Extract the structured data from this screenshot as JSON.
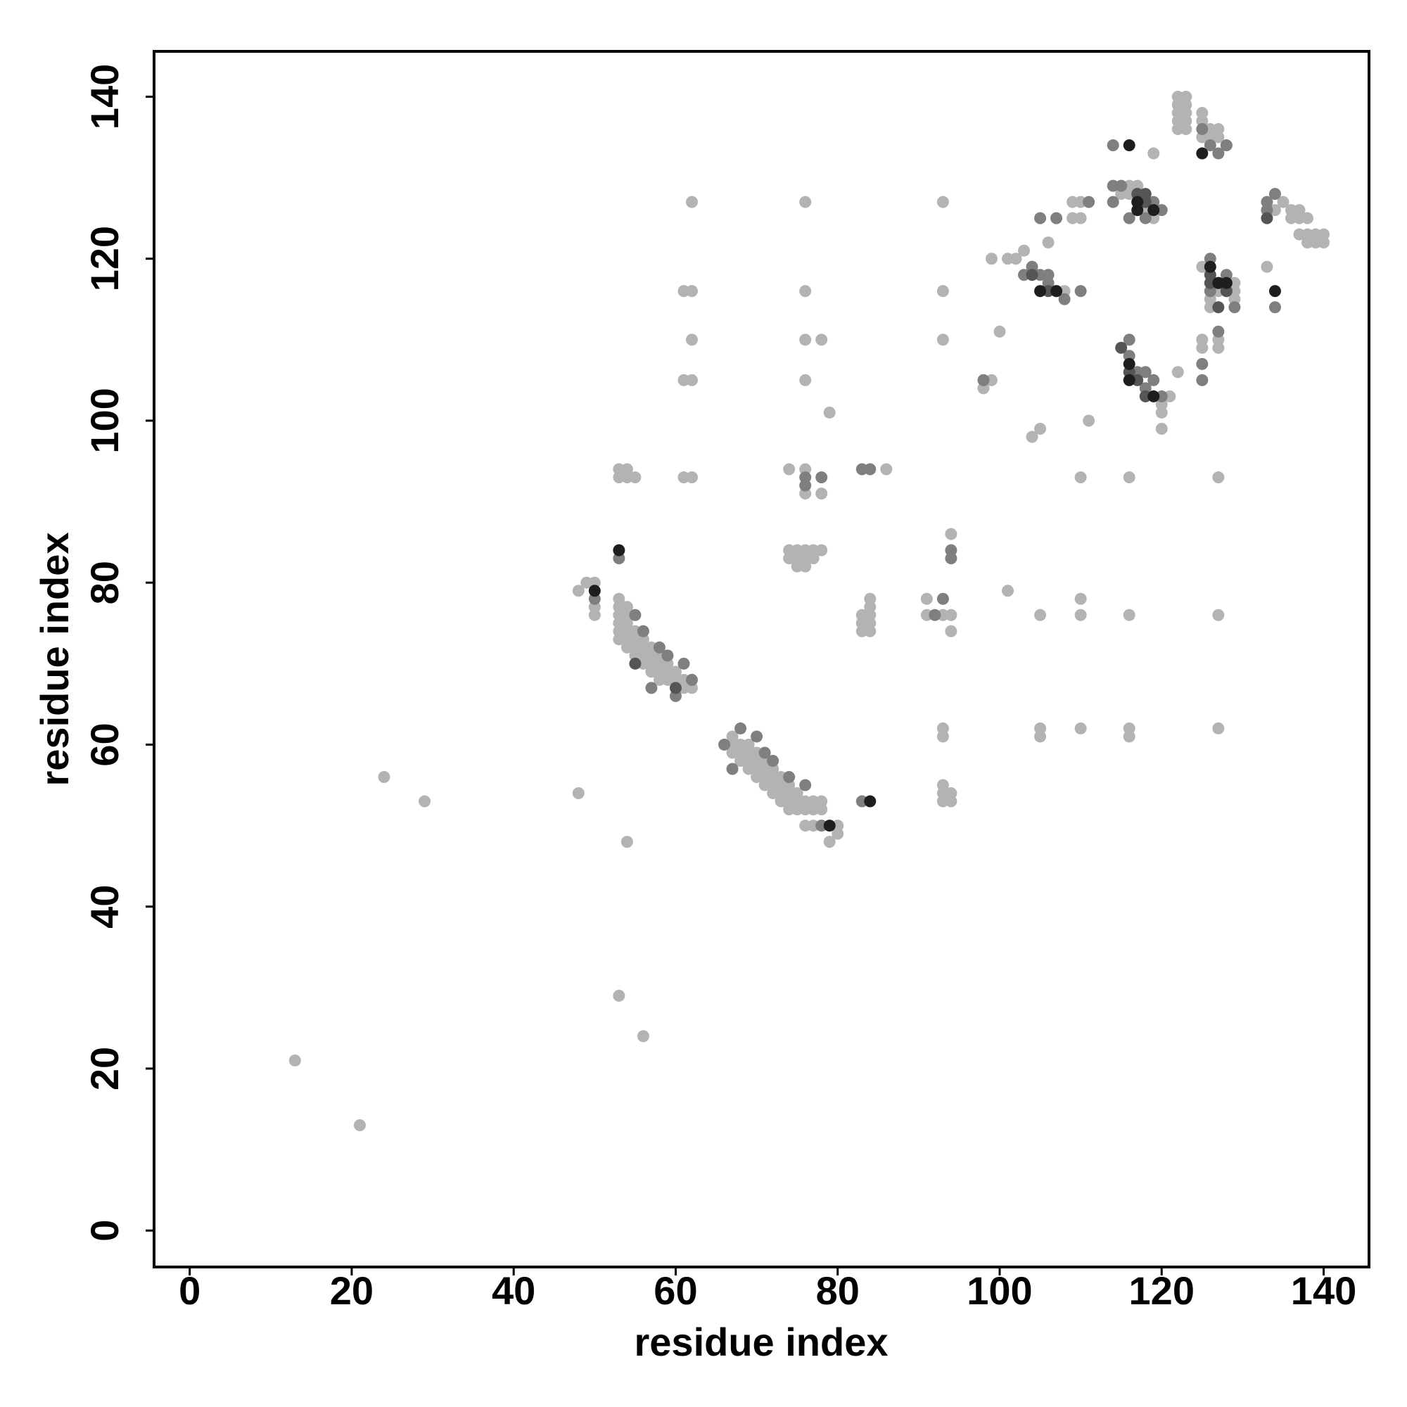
{
  "chart_data": {
    "type": "scatter",
    "xlabel": "residue index",
    "ylabel": "residue index",
    "xlim": [
      -4.4,
      145.6
    ],
    "ylim": [
      -4.5,
      145.6
    ],
    "xticks": [
      0,
      20,
      40,
      60,
      80,
      100,
      120,
      140
    ],
    "yticks": [
      0,
      20,
      40,
      60,
      80,
      100,
      120,
      140
    ],
    "series": [
      {
        "color": "#b3b3b3",
        "x": [
          13,
          21,
          24,
          29,
          48,
          48,
          49,
          50,
          53,
          54,
          56,
          53,
          53,
          53,
          53,
          53,
          53,
          54,
          54,
          54,
          54,
          54,
          54,
          55,
          55,
          55,
          55,
          56,
          56,
          56,
          56,
          57,
          57,
          57,
          57,
          58,
          58,
          58,
          58,
          59,
          59,
          59,
          60,
          60,
          60,
          61,
          61,
          62,
          50,
          50,
          53,
          54,
          53,
          54,
          55,
          62,
          61,
          61,
          62,
          61,
          62,
          62,
          62,
          67,
          67,
          67,
          68,
          68,
          68,
          69,
          69,
          69,
          69,
          70,
          70,
          70,
          70,
          71,
          71,
          71,
          71,
          72,
          72,
          72,
          72,
          73,
          73,
          73,
          73,
          74,
          74,
          74,
          74,
          75,
          75,
          75,
          76,
          76,
          76,
          77,
          77,
          78,
          78,
          79,
          80,
          80,
          77,
          74,
          76,
          76,
          78,
          74,
          75,
          74,
          75,
          76,
          76,
          77,
          77,
          78,
          75,
          76,
          76,
          76,
          78,
          76,
          76,
          79,
          86,
          83,
          83,
          84,
          84,
          84,
          84,
          84,
          83,
          91,
          91,
          93,
          94,
          94,
          94,
          93,
          93,
          93,
          93,
          94,
          93,
          94,
          93,
          93,
          93,
          98,
          99,
          99,
          101,
          100,
          101,
          102,
          103,
          104,
          105,
          105,
          105,
          105,
          106,
          107,
          108,
          109,
          109,
          110,
          110,
          110,
          110,
          110,
          110,
          111,
          116,
          116,
          116,
          116,
          116,
          117,
          115,
          116,
          117,
          118,
          119,
          120,
          120,
          120,
          121,
          122,
          119,
          122,
          123,
          122,
          123,
          122,
          123,
          122,
          123,
          122,
          123,
          125,
          125,
          126,
          125,
          126,
          127,
          127,
          128,
          125,
          125,
          125,
          126,
          127,
          127,
          127,
          127,
          127,
          127,
          126,
          129,
          129,
          129,
          133,
          134,
          135,
          136,
          136,
          137,
          137,
          138,
          137,
          138,
          138,
          139,
          139,
          140,
          140
        ],
        "y": [
          21,
          13,
          56,
          53,
          54,
          79,
          80,
          80,
          29,
          48,
          24,
          78,
          77,
          76,
          75,
          74,
          73,
          77,
          76,
          75,
          74,
          73,
          72,
          74,
          73,
          72,
          71,
          73,
          72,
          71,
          70,
          72,
          71,
          70,
          69,
          71,
          70,
          69,
          68,
          70,
          69,
          68,
          69,
          68,
          67,
          68,
          67,
          67,
          76,
          77,
          94,
          94,
          93,
          93,
          93,
          93,
          93,
          105,
          105,
          116,
          116,
          110,
          127,
          61,
          60,
          59,
          60,
          59,
          58,
          60,
          59,
          58,
          57,
          59,
          58,
          57,
          56,
          58,
          57,
          56,
          55,
          57,
          56,
          55,
          54,
          56,
          55,
          54,
          53,
          55,
          54,
          53,
          52,
          54,
          53,
          52,
          53,
          52,
          50,
          53,
          52,
          52,
          53,
          48,
          49,
          50,
          50,
          94,
          94,
          91,
          91,
          84,
          84,
          83,
          83,
          84,
          83,
          84,
          83,
          84,
          82,
          82,
          105,
          110,
          110,
          116,
          127,
          101,
          94,
          76,
          75,
          76,
          75,
          77,
          78,
          74,
          74,
          78,
          76,
          76,
          76,
          74,
          86,
          61,
          62,
          55,
          54,
          54,
          53,
          53,
          110,
          116,
          127,
          104,
          105,
          120,
          79,
          111,
          120,
          120,
          121,
          98,
          99,
          76,
          62,
          61,
          122,
          116,
          116,
          127,
          125,
          127,
          125,
          93,
          78,
          76,
          62,
          100,
          93,
          76,
          62,
          61,
          129,
          129,
          128,
          128,
          127,
          126,
          125,
          102,
          101,
          99,
          103,
          106,
          133,
          140,
          140,
          139,
          139,
          138,
          138,
          137,
          137,
          136,
          136,
          138,
          137,
          136,
          135,
          135,
          136,
          135,
          134,
          119,
          110,
          109,
          115,
          116,
          110,
          109,
          93,
          76,
          62,
          114,
          117,
          116,
          115,
          119,
          126,
          127,
          126,
          125,
          126,
          125,
          125,
          123,
          123,
          122,
          123,
          122,
          123,
          122
        ]
      },
      {
        "color": "#7f7f7f",
        "x": [
          50,
          53,
          55,
          56,
          58,
          59,
          61,
          62,
          57,
          60,
          66,
          67,
          68,
          70,
          71,
          72,
          74,
          76,
          76,
          76,
          78,
          78,
          83,
          83,
          84,
          92,
          93,
          94,
          94,
          98,
          103,
          104,
          105,
          106,
          106,
          105,
          107,
          108,
          110,
          111,
          114,
          114,
          115,
          116,
          116,
          116,
          117,
          118,
          118,
          118,
          119,
          120,
          119,
          120,
          125,
          126,
          127,
          128,
          125,
          125,
          126,
          126,
          127,
          128,
          128,
          129,
          133,
          133,
          134,
          134,
          114
        ],
        "y": [
          78,
          83,
          76,
          74,
          72,
          71,
          70,
          68,
          67,
          66,
          60,
          57,
          62,
          61,
          59,
          58,
          56,
          55,
          93,
          92,
          93,
          50,
          53,
          94,
          94,
          76,
          78,
          84,
          83,
          105,
          118,
          119,
          118,
          117,
          118,
          125,
          125,
          115,
          116,
          127,
          129,
          127,
          129,
          125,
          108,
          110,
          106,
          106,
          104,
          125,
          127,
          126,
          105,
          103,
          136,
          134,
          133,
          134,
          107,
          105,
          116,
          120,
          111,
          118,
          116,
          114,
          127,
          126,
          128,
          114,
          134
        ]
      },
      {
        "color": "#555555",
        "x": [
          55,
          60,
          104,
          106,
          117,
          118,
          118,
          116,
          117,
          118,
          126,
          126,
          127,
          128,
          127,
          133,
          115
        ],
        "y": [
          70,
          67,
          118,
          116,
          128,
          128,
          127,
          106,
          105,
          103,
          117,
          118,
          117,
          116,
          114,
          125,
          109
        ]
      },
      {
        "color": "#1e1e1e",
        "x": [
          53,
          50,
          79,
          84,
          105,
          107,
          116,
          117,
          117,
          119,
          116,
          116,
          119,
          125,
          126,
          127,
          128,
          134
        ],
        "y": [
          84,
          79,
          50,
          53,
          116,
          116,
          134,
          127,
          126,
          126,
          105,
          107,
          103,
          133,
          119,
          117,
          117,
          116
        ]
      }
    ]
  }
}
